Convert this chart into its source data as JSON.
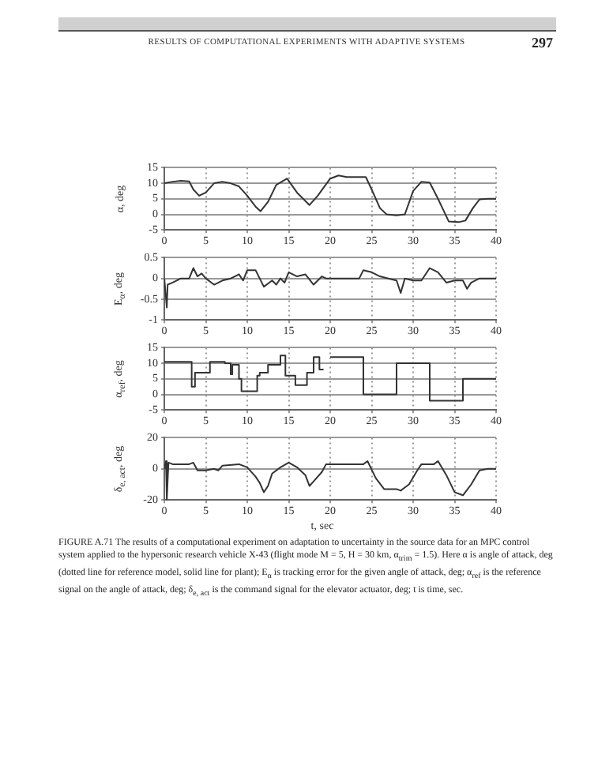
{
  "chart_data": [
    {
      "type": "line",
      "ylabel": "α, deg",
      "annotations": [
        "RESULTS OF COMPUTATIONAL EXPERIMENTS WITH ADAPTIVE SYSTEMS",
        "297"
      ],
      "xlim": [
        0,
        40
      ],
      "xticks": [
        0,
        5,
        10,
        15,
        20,
        25,
        30,
        35,
        40
      ],
      "ylim": [
        -5,
        15
      ],
      "yticks": [
        -5,
        0,
        5,
        10,
        15
      ],
      "grid": true,
      "x": [
        0,
        1,
        2,
        3,
        3.5,
        4.2,
        5,
        6,
        7,
        8,
        9,
        10,
        11,
        11.6,
        12.5,
        13.5,
        14.8,
        16,
        17.5,
        18.5,
        20,
        21,
        22,
        24.3,
        25,
        26,
        26.8,
        28,
        29,
        30,
        31,
        32,
        33,
        34.3,
        35.5,
        36.3,
        37.2,
        38,
        39,
        40
      ],
      "series": [
        {
          "color": "#333333",
          "values": [
            10,
            10.5,
            10.8,
            10.6,
            8,
            6,
            7,
            10,
            10.5,
            10,
            9,
            6,
            2.5,
            1,
            4,
            9.5,
            11.5,
            7,
            3,
            6,
            11.5,
            12.5,
            12,
            12,
            8,
            2,
            0,
            -0.3,
            0,
            7.5,
            10.5,
            10.2,
            5,
            -2.3,
            -2.5,
            -2,
            2,
            4.8,
            5,
            5
          ]
        }
      ]
    },
    {
      "type": "line",
      "ylabel": "E$_{α}$, deg",
      "xlim": [
        0,
        40
      ],
      "xticks": [
        0,
        5,
        10,
        15,
        20,
        25,
        30,
        35,
        40
      ],
      "ylim": [
        -1,
        0.5
      ],
      "yticks": [
        -1,
        -0.5,
        0,
        0.5
      ],
      "grid": true,
      "x": [
        0,
        0.3,
        0.4,
        1,
        2,
        3,
        3.5,
        4,
        4.5,
        5,
        6,
        7,
        8,
        8.5,
        9,
        9.5,
        10,
        11,
        12,
        13,
        13.5,
        14,
        14.5,
        15,
        16,
        17,
        18,
        19,
        19.5,
        23.5,
        24,
        25,
        26,
        27,
        28,
        28.5,
        29,
        30,
        31,
        32,
        33,
        34,
        35,
        36,
        36.5,
        37,
        38,
        40
      ],
      "series": [
        {
          "color": "#333333",
          "values": [
            0,
            -0.7,
            -0.15,
            -0.1,
            0,
            0,
            0.25,
            0.05,
            0.12,
            0,
            -0.15,
            -0.05,
            0,
            0.05,
            0.1,
            -0.05,
            0.2,
            0.2,
            -0.2,
            -0.05,
            -0.15,
            0,
            -0.1,
            0.15,
            0.05,
            0.1,
            -0.15,
            0.05,
            0,
            0,
            0.2,
            0.15,
            0.05,
            0,
            -0.05,
            -0.35,
            0,
            -0.05,
            -0.05,
            0.25,
            0.15,
            -0.1,
            -0.05,
            -0.05,
            -0.25,
            -0.1,
            0,
            0
          ]
        }
      ]
    },
    {
      "type": "step",
      "ylabel": "α$_{ref}$, deg",
      "xlim": [
        0,
        40
      ],
      "xticks": [
        0,
        5,
        10,
        15,
        20,
        25,
        30,
        35,
        40
      ],
      "ylim": [
        -5,
        15
      ],
      "yticks": [
        -5,
        0,
        5,
        10,
        15
      ],
      "grid": true,
      "x": [
        0,
        3.3,
        3.7,
        5.5,
        7.3,
        8,
        8.2,
        9,
        9.3,
        11.2,
        11.5,
        12.5,
        14,
        14.6,
        15.8,
        17.2,
        18,
        18.7,
        19.2,
        19.3,
        20,
        24,
        28,
        32,
        36,
        40
      ],
      "series": [
        {
          "color": "#333333",
          "values": [
            10.5,
            2.5,
            7,
            10.5,
            10,
            6.5,
            9.5,
            5,
            1,
            6,
            7,
            9.5,
            12.5,
            6,
            3,
            7,
            12,
            8,
            8,
            null,
            12,
            0,
            10,
            -2,
            5,
            5
          ]
        }
      ]
    },
    {
      "type": "line",
      "ylabel": "δ$_{e, act}$, deg",
      "xlabel": "t, sec",
      "annotations": [
        "FIGURE A.71 The results of a computational experiment on adaptation to uncertainty in the source data for an MPC control system applied to the hypersonic research vehicle X-43 (flight mode M = 5, H = 30 km, α$_{trim}$ = 1.5). Here α is angle of attack, deg (dotted line for reference model, solid line for plant); E$_{α}$ is tracking error for the given angle of attack, deg; α$_{ref}$ is the reference signal on the angle of attack, deg; δ$_{e, act}$ is the command signal for the elevator actuator, deg; t is time, sec."
      ],
      "xlim": [
        0,
        40
      ],
      "xticks": [
        0,
        5,
        10,
        15,
        20,
        25,
        30,
        35,
        40
      ],
      "ylim": [
        -20,
        20
      ],
      "yticks": [
        -20,
        0,
        20
      ],
      "grid": true,
      "x": [
        0,
        0.2,
        0.3,
        0.5,
        1,
        3,
        3.5,
        4,
        5,
        6,
        6.5,
        7,
        9,
        10,
        11,
        11.5,
        12,
        12.5,
        13,
        14,
        15,
        16,
        17,
        17.5,
        18,
        19,
        19.5,
        24,
        24.5,
        25.5,
        26.5,
        28,
        28.5,
        29.5,
        30.5,
        31,
        32.5,
        33,
        34,
        35,
        36,
        37,
        38,
        39,
        40
      ],
      "series": [
        {
          "color": "#333333",
          "values": [
            0,
            5,
            -20,
            4,
            3,
            3,
            4,
            -1,
            -1,
            0,
            -1,
            2,
            3,
            1,
            -5,
            -9,
            -15,
            -11,
            -3,
            1,
            4,
            1,
            -4,
            -11,
            -8,
            -2,
            3,
            3,
            5,
            -6,
            -13,
            -13,
            -14,
            -10,
            -1,
            3,
            3,
            5,
            -4,
            -15,
            -17,
            -10,
            -1,
            0,
            0
          ]
        }
      ]
    }
  ]
}
